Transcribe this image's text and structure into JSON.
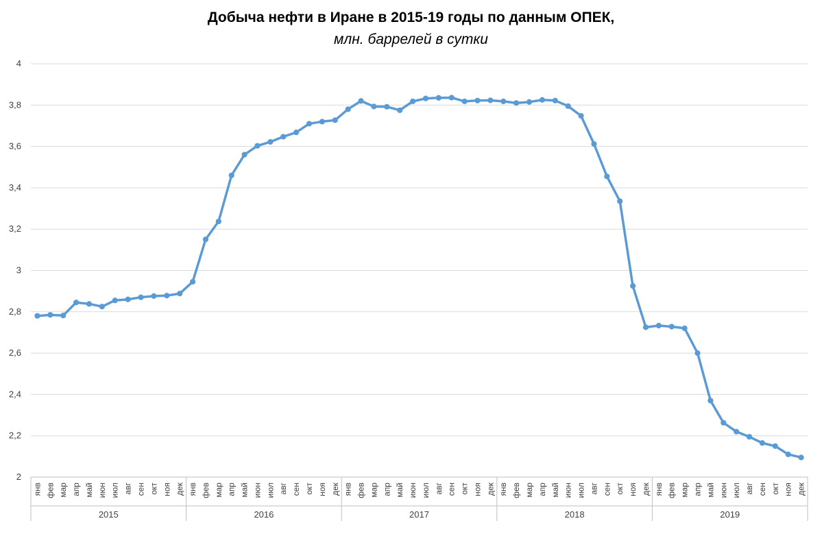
{
  "chart_data": {
    "type": "line",
    "title": "Добыча нефти в Иране в 2015-19 годы по данным ОПЕК,",
    "subtitle": "млн. баррелей в сутки",
    "xlabel": "",
    "ylabel": "",
    "ylim": [
      2,
      4
    ],
    "yticks": [
      "2",
      "2,2",
      "2,4",
      "2,6",
      "2,8",
      "3",
      "3,2",
      "3,4",
      "3,6",
      "3,8",
      "4"
    ],
    "grid": true,
    "legend": "none",
    "line_color": "#5B9BD5",
    "years": [
      "2015",
      "2016",
      "2017",
      "2018",
      "2019"
    ],
    "months": [
      "янв",
      "фев",
      "мар",
      "апр",
      "май",
      "июн",
      "июл",
      "авг",
      "сен",
      "окт",
      "ноя",
      "дек"
    ],
    "series": [
      {
        "values": [
          2.78,
          2.785,
          2.782,
          2.845,
          2.838,
          2.825,
          2.855,
          2.86,
          2.87,
          2.876,
          2.878,
          2.888,
          2.945,
          3.15,
          3.237,
          3.46,
          3.56,
          3.603,
          3.622,
          3.647,
          3.668,
          3.71,
          3.72,
          3.727,
          3.78,
          3.82,
          3.793,
          3.792,
          3.775,
          3.818,
          3.832,
          3.835,
          3.836,
          3.818,
          3.822,
          3.823,
          3.818,
          3.81,
          3.815,
          3.825,
          3.822,
          3.795,
          3.748,
          3.612,
          3.455,
          3.335,
          2.925,
          2.725,
          2.733,
          2.728,
          2.72,
          2.6,
          2.37,
          2.263,
          2.22,
          2.195,
          2.165,
          2.15,
          2.11,
          2.095
        ]
      }
    ]
  }
}
